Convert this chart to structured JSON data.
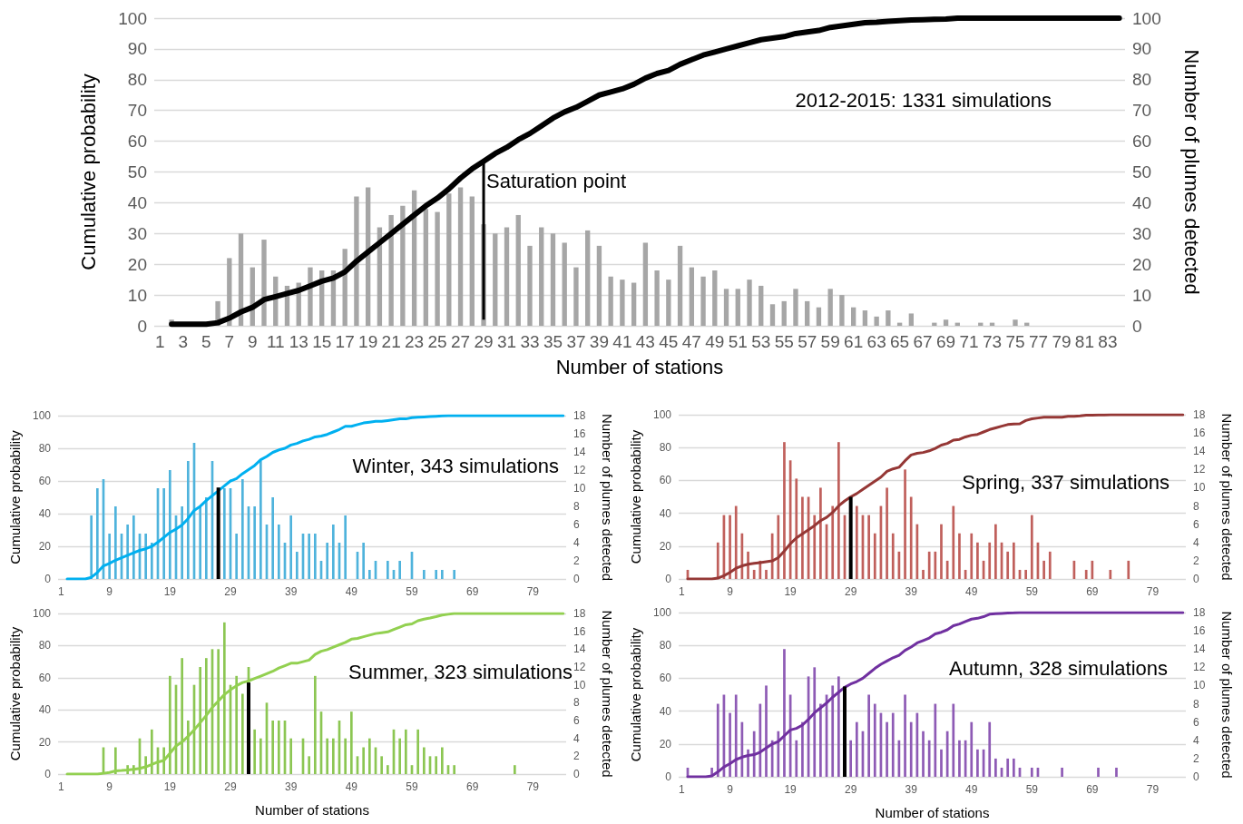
{
  "chart_data": [
    {
      "type": "bar",
      "title": "2012-2015: 1331 simulations",
      "xlabel": "Number of stations",
      "ylabel": "Cumulative probability",
      "y2label": "Number of plumes detected",
      "x": [
        2,
        3,
        4,
        5,
        6,
        7,
        8,
        9,
        10,
        11,
        12,
        13,
        14,
        15,
        16,
        17,
        18,
        19,
        20,
        21,
        22,
        23,
        24,
        25,
        26,
        27,
        28,
        29,
        30,
        31,
        32,
        33,
        34,
        35,
        36,
        37,
        38,
        39,
        40,
        41,
        42,
        43,
        44,
        45,
        46,
        47,
        48,
        49,
        50,
        51,
        52,
        53,
        54,
        55,
        56,
        57,
        58,
        59,
        60,
        61,
        62,
        63,
        64,
        65,
        66,
        67,
        68,
        69,
        70,
        71,
        72,
        73,
        74,
        75,
        76,
        77,
        78,
        79,
        80,
        81,
        82,
        83,
        84
      ],
      "xlim": [
        0.5,
        84.5
      ],
      "xticks": [
        1,
        3,
        5,
        7,
        9,
        11,
        13,
        15,
        17,
        19,
        21,
        23,
        25,
        27,
        29,
        31,
        33,
        35,
        37,
        39,
        41,
        43,
        45,
        47,
        49,
        51,
        53,
        55,
        57,
        59,
        61,
        63,
        65,
        67,
        69,
        71,
        73,
        75,
        77,
        79,
        81,
        83
      ],
      "ylim": [
        0,
        100
      ],
      "yticks": [
        0,
        10,
        20,
        30,
        40,
        50,
        60,
        70,
        80,
        90,
        100
      ],
      "y2lim": [
        0,
        100
      ],
      "y2ticks": [
        0,
        10,
        20,
        30,
        40,
        50,
        60,
        70,
        80,
        90,
        100
      ],
      "grid": "y",
      "series": [
        {
          "type": "bar",
          "axis": "y2",
          "color": "#a6a6a6",
          "values": [
            2,
            null,
            null,
            null,
            8,
            22,
            30,
            19,
            28,
            16,
            13,
            14,
            19,
            18,
            18,
            25,
            42,
            45,
            32,
            36,
            39,
            44,
            38,
            37,
            43,
            45,
            42,
            33,
            30,
            32,
            36,
            26,
            32,
            30,
            27,
            19,
            31,
            26,
            16,
            15,
            14,
            27,
            18,
            15,
            26,
            19,
            16,
            18,
            12,
            12,
            15,
            13,
            7,
            8,
            12,
            8,
            6,
            12,
            10,
            6,
            5,
            3,
            5,
            1,
            4,
            null,
            1,
            2,
            1,
            null,
            1,
            1,
            null,
            2,
            1,
            null,
            null,
            null,
            null,
            null,
            null,
            null,
            null
          ]
        },
        {
          "type": "line",
          "color": "#000000",
          "values": [
            0.5,
            0.5,
            0.5,
            0.5,
            1,
            2.5,
            4.5,
            6,
            8.5,
            9.5,
            10.5,
            11.5,
            13,
            14.5,
            15.5,
            17.5,
            21,
            24,
            27,
            30,
            33,
            36,
            39,
            41.5,
            44.5,
            48,
            51,
            53.5,
            56,
            58,
            60.5,
            62.5,
            65,
            67.5,
            69.5,
            71,
            73,
            75,
            76,
            77,
            78.5,
            80.5,
            82,
            83,
            85,
            86.5,
            88,
            89,
            90,
            91,
            92,
            93,
            93.5,
            94,
            95,
            95.5,
            96,
            97,
            97.5,
            98,
            98.5,
            98.7,
            99,
            99.2,
            99.4,
            99.5,
            99.6,
            99.7,
            100,
            100,
            100,
            100,
            100,
            100,
            100,
            100,
            100,
            100,
            100,
            100,
            100,
            100,
            100
          ]
        },
        {
          "type": "line",
          "color": "#000000",
          "x": [
            29,
            29
          ],
          "values": [
            2,
            53.5
          ]
        }
      ],
      "annotations": [
        {
          "text": "Saturation point",
          "x": 29,
          "y": 47
        }
      ]
    },
    {
      "type": "bar",
      "title": "Winter, 343 simulations",
      "ylabel": "Cumulative probability",
      "y2label": "Number of plumes detected",
      "x": [
        2,
        3,
        4,
        5,
        6,
        7,
        8,
        9,
        10,
        11,
        12,
        13,
        14,
        15,
        16,
        17,
        18,
        19,
        20,
        21,
        22,
        23,
        24,
        25,
        26,
        27,
        28,
        29,
        30,
        31,
        32,
        33,
        34,
        35,
        36,
        37,
        38,
        39,
        40,
        41,
        42,
        43,
        44,
        45,
        46,
        47,
        48,
        49,
        50,
        51,
        52,
        53,
        54,
        55,
        56,
        57,
        58,
        59,
        60,
        61,
        62,
        63,
        64,
        65,
        66,
        67,
        68,
        69,
        70,
        71,
        72,
        73,
        74,
        75,
        76,
        77,
        78,
        79,
        80,
        81,
        82,
        83,
        84
      ],
      "xlim": [
        0.5,
        84.5
      ],
      "xticks": [
        1,
        9,
        19,
        29,
        39,
        49,
        59,
        69,
        79
      ],
      "ylim": [
        0,
        100
      ],
      "yticks": [
        0,
        20,
        40,
        60,
        80,
        100
      ],
      "y2lim": [
        0,
        18
      ],
      "y2ticks": [
        0,
        2,
        4,
        6,
        8,
        10,
        12,
        14,
        16,
        18
      ],
      "grid": "y",
      "series": [
        {
          "type": "bar",
          "axis": "y2",
          "color": "#4fb3dc",
          "values": [
            null,
            null,
            null,
            null,
            7,
            10,
            11,
            5,
            8,
            5,
            6,
            7,
            5,
            5,
            4,
            10,
            10,
            12,
            7,
            8,
            13,
            15,
            8,
            9,
            13,
            null,
            10,
            10,
            5,
            11,
            8,
            8,
            13,
            6,
            9,
            6,
            4,
            7,
            3,
            5,
            5,
            5,
            2,
            4,
            6,
            4,
            7,
            null,
            3,
            4,
            1,
            2,
            null,
            2,
            1,
            2,
            null,
            3,
            null,
            1,
            null,
            1,
            1,
            null,
            1,
            null,
            null,
            null,
            null,
            null,
            null,
            null,
            null,
            null,
            null,
            null,
            null,
            null,
            null,
            null,
            null,
            null,
            null
          ]
        },
        {
          "type": "line",
          "color": "#00b0f0",
          "values": [
            0,
            0,
            0,
            0,
            1,
            4,
            8,
            9.5,
            11.5,
            13,
            14.5,
            16,
            17.5,
            18.5,
            20,
            22.5,
            25.5,
            28.5,
            30.5,
            33,
            37,
            42,
            44.5,
            48,
            51,
            54,
            57,
            60,
            61.5,
            64.5,
            67,
            69.5,
            73,
            75,
            77.5,
            79,
            80,
            82,
            83,
            84.5,
            85.5,
            87,
            87.5,
            88.5,
            90,
            91.5,
            93.5,
            93.5,
            94.5,
            95.5,
            96,
            96.5,
            96.5,
            97,
            97.5,
            98,
            98,
            98.7,
            99,
            99.2,
            99.4,
            99.6,
            99.8,
            100,
            100,
            100,
            100,
            100,
            100,
            100,
            100,
            100,
            100,
            100,
            100,
            100,
            100,
            100,
            100,
            100,
            100,
            100,
            100
          ]
        },
        {
          "type": "line",
          "color": "#000000",
          "x": [
            27,
            27
          ],
          "values": [
            0,
            56
          ]
        }
      ]
    },
    {
      "type": "bar",
      "title": "Spring, 337 simulations",
      "ylabel": "Cumulative probability",
      "y2label": "Number of plumes detected",
      "x": [
        2,
        3,
        4,
        5,
        6,
        7,
        8,
        9,
        10,
        11,
        12,
        13,
        14,
        15,
        16,
        17,
        18,
        19,
        20,
        21,
        22,
        23,
        24,
        25,
        26,
        27,
        28,
        29,
        30,
        31,
        32,
        33,
        34,
        35,
        36,
        37,
        38,
        39,
        40,
        41,
        42,
        43,
        44,
        45,
        46,
        47,
        48,
        49,
        50,
        51,
        52,
        53,
        54,
        55,
        56,
        57,
        58,
        59,
        60,
        61,
        62,
        63,
        64,
        65,
        66,
        67,
        68,
        69,
        70,
        71,
        72,
        73,
        74,
        75,
        76,
        77,
        78,
        79,
        80,
        81,
        82,
        83,
        84
      ],
      "xlim": [
        0.5,
        84.5
      ],
      "xticks": [
        1,
        9,
        19,
        29,
        39,
        49,
        59,
        69,
        79
      ],
      "ylim": [
        0,
        100
      ],
      "yticks": [
        0,
        20,
        40,
        60,
        80,
        100
      ],
      "y2lim": [
        0,
        18
      ],
      "y2ticks": [
        0,
        2,
        4,
        6,
        8,
        10,
        12,
        14,
        16,
        18
      ],
      "grid": "y",
      "series": [
        {
          "type": "bar",
          "axis": "y2",
          "color": "#c0605c",
          "values": [
            1,
            null,
            null,
            null,
            null,
            4,
            7,
            7,
            8,
            5,
            3,
            1,
            2,
            1,
            5,
            7,
            15,
            13,
            11,
            9,
            9,
            7,
            10,
            6,
            8,
            15,
            7,
            null,
            8,
            7,
            7,
            5,
            8,
            10,
            5,
            3,
            12,
            9,
            6,
            1,
            3,
            3,
            6,
            2,
            8,
            5,
            1,
            5,
            4,
            2,
            4,
            6,
            4,
            3,
            4,
            1,
            1,
            7,
            4,
            2,
            3,
            null,
            null,
            null,
            2,
            null,
            1,
            2,
            null,
            null,
            1,
            null,
            null,
            2,
            null,
            null,
            null,
            null,
            null,
            null,
            null,
            null,
            null
          ]
        },
        {
          "type": "line",
          "color": "#953735",
          "values": [
            0,
            0,
            0,
            0,
            0,
            0.5,
            2,
            4,
            6.5,
            8,
            9,
            9.5,
            10,
            10.5,
            11,
            13,
            17,
            21.5,
            25,
            27.5,
            30,
            32.5,
            35.5,
            37.5,
            40.5,
            44.5,
            47.5,
            50,
            52,
            54.5,
            57,
            59.5,
            62,
            65.5,
            67,
            68,
            72,
            75.5,
            76.5,
            77,
            78,
            79.5,
            81.5,
            82.5,
            84.5,
            85,
            86.5,
            87.5,
            88,
            89.5,
            91,
            92,
            93,
            94,
            94.3,
            94.5,
            96.5,
            97.5,
            98,
            98.5,
            98.5,
            98.5,
            98.5,
            99,
            99,
            99.3,
            99.7,
            99.7,
            99.8,
            99.8,
            100,
            100,
            100,
            100,
            100,
            100,
            100,
            100,
            100,
            100,
            100,
            100,
            100
          ]
        },
        {
          "type": "line",
          "color": "#000000",
          "x": [
            29,
            29
          ],
          "values": [
            0,
            50
          ]
        }
      ]
    },
    {
      "type": "bar",
      "title": "Summer, 323 simulations",
      "xlabel": "Number of stations",
      "ylabel": "Cumulative probability",
      "y2label": "Number of plumes detected",
      "x": [
        2,
        3,
        4,
        5,
        6,
        7,
        8,
        9,
        10,
        11,
        12,
        13,
        14,
        15,
        16,
        17,
        18,
        19,
        20,
        21,
        22,
        23,
        24,
        25,
        26,
        27,
        28,
        29,
        30,
        31,
        32,
        33,
        34,
        35,
        36,
        37,
        38,
        39,
        40,
        41,
        42,
        43,
        44,
        45,
        46,
        47,
        48,
        49,
        50,
        51,
        52,
        53,
        54,
        55,
        56,
        57,
        58,
        59,
        60,
        61,
        62,
        63,
        64,
        65,
        66,
        67,
        68,
        69,
        70,
        71,
        72,
        73,
        74,
        75,
        76,
        77,
        78,
        79,
        80,
        81,
        82,
        83,
        84
      ],
      "xlim": [
        0.5,
        84.5
      ],
      "xticks": [
        1,
        9,
        19,
        29,
        39,
        49,
        59,
        69,
        79
      ],
      "ylim": [
        0,
        100
      ],
      "yticks": [
        0,
        20,
        40,
        60,
        80,
        100
      ],
      "y2lim": [
        0,
        18
      ],
      "y2ticks": [
        0,
        2,
        4,
        6,
        8,
        10,
        12,
        14,
        16,
        18
      ],
      "grid": "y",
      "series": [
        {
          "type": "bar",
          "axis": "y2",
          "color": "#8cc653",
          "values": [
            null,
            null,
            null,
            null,
            null,
            null,
            3,
            null,
            3,
            null,
            1,
            1,
            4,
            2,
            5,
            3,
            3,
            11,
            10,
            13,
            6,
            10,
            12,
            13,
            14,
            14,
            17,
            10,
            11,
            9,
            12,
            5,
            4,
            8,
            6,
            6,
            6,
            4,
            null,
            4,
            2,
            11,
            7,
            4,
            4,
            6,
            4,
            7,
            2,
            3,
            4,
            3,
            2,
            1,
            5,
            4,
            5,
            1,
            5,
            3,
            2,
            2,
            3,
            1,
            1,
            null,
            null,
            null,
            null,
            null,
            null,
            null,
            null,
            null,
            1,
            null,
            null,
            null,
            null,
            null,
            null,
            null,
            null
          ]
        },
        {
          "type": "line",
          "color": "#92d050",
          "values": [
            0,
            0,
            0,
            0,
            0,
            0,
            0.5,
            1,
            2,
            2.2,
            2.5,
            3,
            3.5,
            4.5,
            6,
            7.5,
            8.5,
            13,
            17.5,
            20,
            23.5,
            27.5,
            32,
            36.5,
            41.5,
            45.5,
            49.5,
            52.5,
            55,
            57,
            58,
            59.5,
            61,
            62.5,
            64,
            66,
            67.5,
            69,
            69,
            70,
            71,
            74.5,
            76.5,
            77.5,
            79,
            80.5,
            82,
            84,
            84.5,
            85.5,
            86.5,
            87.5,
            88,
            88.5,
            90,
            91.5,
            93,
            93.5,
            95.5,
            96.5,
            97.2,
            98,
            99,
            99.5,
            100,
            100,
            100,
            100,
            100,
            100,
            100,
            100,
            100,
            100,
            100,
            100,
            100,
            100,
            100,
            100,
            100,
            100,
            100
          ]
        },
        {
          "type": "line",
          "color": "#000000",
          "x": [
            32,
            32
          ],
          "values": [
            0,
            57
          ]
        }
      ]
    },
    {
      "type": "bar",
      "title": "Autumn, 328 simulations",
      "xlabel": "Number of stations",
      "ylabel": "Cumulative probability",
      "y2label": "Number of plumes detected",
      "x": [
        2,
        3,
        4,
        5,
        6,
        7,
        8,
        9,
        10,
        11,
        12,
        13,
        14,
        15,
        16,
        17,
        18,
        19,
        20,
        21,
        22,
        23,
        24,
        25,
        26,
        27,
        28,
        29,
        30,
        31,
        32,
        33,
        34,
        35,
        36,
        37,
        38,
        39,
        40,
        41,
        42,
        43,
        44,
        45,
        46,
        47,
        48,
        49,
        50,
        51,
        52,
        53,
        54,
        55,
        56,
        57,
        58,
        59,
        60,
        61,
        62,
        63,
        64,
        65,
        66,
        67,
        68,
        69,
        70,
        71,
        72,
        73,
        74,
        75,
        76,
        77,
        78,
        79,
        80,
        81,
        82,
        83,
        84
      ],
      "xlim": [
        0.5,
        84.5
      ],
      "xticks": [
        1,
        9,
        19,
        29,
        39,
        49,
        59,
        69,
        79
      ],
      "ylim": [
        0,
        100
      ],
      "yticks": [
        0,
        20,
        40,
        60,
        80,
        100
      ],
      "y2lim": [
        0,
        18
      ],
      "y2ticks": [
        0,
        2,
        4,
        6,
        8,
        10,
        12,
        14,
        16,
        18
      ],
      "grid": "y",
      "series": [
        {
          "type": "bar",
          "axis": "y2",
          "color": "#8e5bb5",
          "values": [
            1,
            null,
            null,
            null,
            1,
            8,
            9,
            7,
            9,
            6,
            3,
            5,
            8,
            10,
            4,
            5,
            14,
            9,
            4,
            6,
            11,
            12,
            8,
            9,
            10,
            11,
            null,
            4,
            6,
            5,
            9,
            8,
            7,
            6,
            7,
            4,
            9,
            6,
            7,
            5,
            4,
            8,
            3,
            5,
            8,
            4,
            4,
            6,
            3,
            3,
            6,
            2,
            1,
            2,
            2,
            1,
            null,
            1,
            1,
            null,
            null,
            null,
            1,
            null,
            null,
            null,
            null,
            null,
            1,
            null,
            null,
            1,
            null,
            null,
            null,
            null,
            null,
            null,
            null,
            null,
            null,
            null,
            null
          ]
        },
        {
          "type": "line",
          "color": "#7030a0",
          "values": [
            0,
            0,
            0,
            0,
            0.5,
            3,
            6,
            8,
            10.5,
            12,
            13,
            13.5,
            15,
            17.5,
            20,
            21.5,
            25,
            28.5,
            29.5,
            31.5,
            35,
            39,
            42,
            45,
            48.5,
            51.5,
            54.5,
            56.5,
            58,
            60,
            63,
            66,
            68.5,
            70.5,
            72.5,
            74,
            77,
            79,
            81.5,
            83,
            84.5,
            87,
            88,
            89.5,
            92,
            93,
            94.5,
            96,
            96.5,
            97.5,
            99,
            99.3,
            99.5,
            99.7,
            99.8,
            100,
            100,
            100,
            100,
            100,
            100,
            100,
            100,
            100,
            100,
            100,
            100,
            100,
            100,
            100,
            100,
            100,
            100,
            100,
            100,
            100,
            100,
            100,
            100,
            100,
            100,
            100,
            100
          ]
        },
        {
          "type": "line",
          "color": "#000000",
          "x": [
            28,
            28
          ],
          "values": [
            0,
            55
          ]
        }
      ]
    }
  ]
}
